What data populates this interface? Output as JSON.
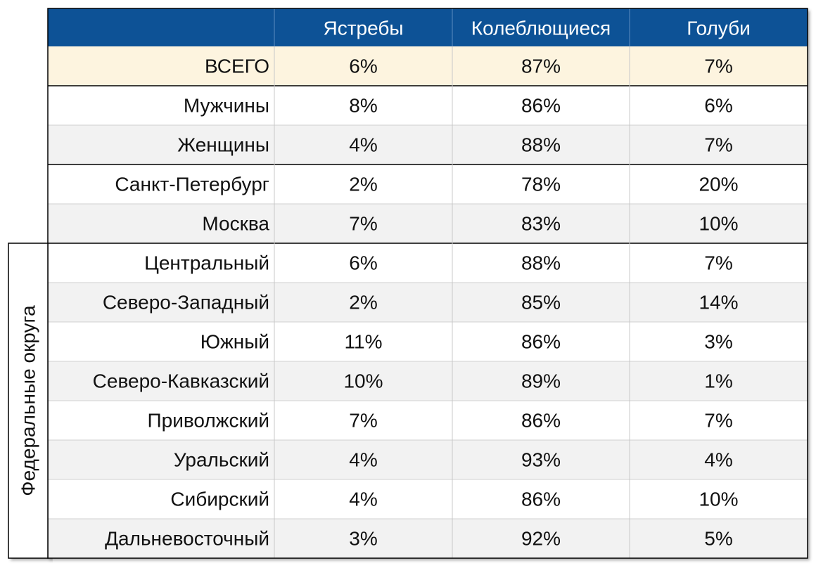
{
  "table": {
    "header": [
      "Ястребы",
      "Колеблющиеся",
      "Голуби"
    ],
    "group_label": "Федеральные округа",
    "rows": [
      [
        "ВСЕГО",
        "6%",
        "87%",
        "7%"
      ],
      [
        "Мужчины",
        "8%",
        "86%",
        "6%"
      ],
      [
        "Женщины",
        "4%",
        "88%",
        "7%"
      ],
      [
        "Санкт-Петербург",
        "2%",
        "78%",
        "20%"
      ],
      [
        "Москва",
        "7%",
        "83%",
        "10%"
      ],
      [
        "Центральный",
        "6%",
        "88%",
        "7%"
      ],
      [
        "Северо-Западный",
        "2%",
        "85%",
        "14%"
      ],
      [
        "Южный",
        "11%",
        "86%",
        "3%"
      ],
      [
        "Северо-Кавказский",
        "10%",
        "89%",
        "1%"
      ],
      [
        "Приволжский",
        "7%",
        "86%",
        "7%"
      ],
      [
        "Уральский",
        "4%",
        "93%",
        "4%"
      ],
      [
        "Сибирский",
        "4%",
        "86%",
        "10%"
      ],
      [
        "Дальневосточный",
        "3%",
        "92%",
        "5%"
      ]
    ]
  }
}
